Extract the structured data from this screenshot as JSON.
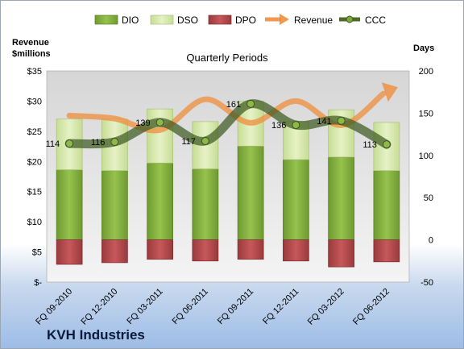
{
  "chart_data": {
    "type": "bar",
    "title": "Quarterly Periods",
    "company": "KVH Industries",
    "y_left_label": [
      "Revenue",
      "$millions"
    ],
    "y_right_label": "Days",
    "categories": [
      "FQ 09-2010",
      "FQ 12-2010",
      "FQ 03-2011",
      "FQ 06-2011",
      "FQ 09-2011",
      "FQ 12-2011",
      "FQ 03-2012",
      "FQ 06-2012"
    ],
    "y_left_ticks": [
      "$-",
      "$5",
      "$10",
      "$15",
      "$20",
      "$25",
      "$30",
      "$35"
    ],
    "y_right_ticks": [
      "-50",
      "0",
      "50",
      "100",
      "150",
      "200"
    ],
    "ylim_days": [
      -50,
      200
    ],
    "ylim_revenue": [
      0,
      35
    ],
    "legend": [
      "DIO",
      "DSO",
      "DPO",
      "Revenue",
      "CCC"
    ],
    "series": [
      {
        "name": "DIO",
        "values": [
          83,
          82,
          91,
          84,
          111,
          95,
          98,
          82
        ]
      },
      {
        "name": "DSO",
        "values": [
          60,
          61,
          64,
          56,
          53,
          45,
          56,
          57
        ]
      },
      {
        "name": "DPO",
        "values": [
          -29,
          -27,
          -23,
          -25,
          -23,
          -25,
          -32,
          -26
        ]
      },
      {
        "name": "Revenue",
        "values": [
          27.6,
          27.1,
          25.2,
          30.3,
          26.4,
          30.0,
          26.0,
          31.5
        ]
      },
      {
        "name": "CCC",
        "values": [
          114,
          116,
          139,
          117,
          161,
          136,
          141,
          113
        ]
      }
    ],
    "colors": {
      "DIO": "#7fa83c",
      "DSO": "#d4e6a8",
      "DPO": "#b0474a",
      "Revenue": "#f0a060",
      "CCC": "#4e6b2a"
    },
    "grid": false,
    "legend_position": "top"
  }
}
